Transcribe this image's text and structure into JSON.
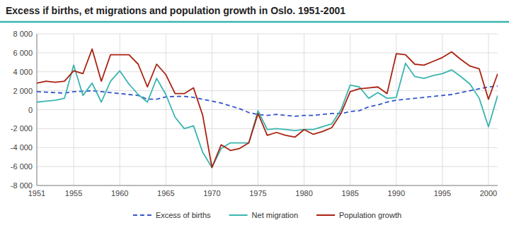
{
  "chart_data": {
    "type": "line",
    "title": "Excess if births, et migrations and population growth in Oslo. 1951-2001",
    "x": [
      1951,
      1952,
      1953,
      1954,
      1955,
      1956,
      1957,
      1958,
      1959,
      1960,
      1961,
      1962,
      1963,
      1964,
      1965,
      1966,
      1967,
      1968,
      1969,
      1970,
      1971,
      1972,
      1973,
      1974,
      1975,
      1976,
      1977,
      1978,
      1979,
      1980,
      1981,
      1982,
      1983,
      1984,
      1985,
      1986,
      1987,
      1988,
      1989,
      1990,
      1991,
      1992,
      1993,
      1994,
      1995,
      1996,
      1997,
      1998,
      1999,
      2000,
      2001
    ],
    "series": [
      {
        "name": "Excess of births",
        "color": "#3355cc",
        "line_style": "dashed",
        "values": [
          1900,
          1850,
          1800,
          1750,
          1900,
          1950,
          2000,
          1900,
          1800,
          1700,
          1600,
          1500,
          1100,
          1100,
          1350,
          1400,
          1400,
          1300,
          1100,
          900,
          700,
          400,
          100,
          -300,
          -500,
          -600,
          -500,
          -600,
          -700,
          -600,
          -600,
          -500,
          -400,
          -400,
          -200,
          -100,
          300,
          500,
          800,
          1000,
          1100,
          1200,
          1300,
          1400,
          1500,
          1600,
          1800,
          2000,
          2200,
          2400,
          2500
        ]
      },
      {
        "name": "Net migration",
        "color": "#3ab5b0",
        "line_style": "solid",
        "values": [
          800,
          900,
          1000,
          1200,
          4700,
          1500,
          2800,
          800,
          3000,
          4100,
          2700,
          1600,
          800,
          3300,
          1600,
          -800,
          -2000,
          -1700,
          -4500,
          -6100,
          -4100,
          -3500,
          -3500,
          -3500,
          -100,
          -2100,
          -2000,
          -2100,
          -2200,
          -2100,
          -2100,
          -1800,
          -1500,
          0,
          2600,
          2400,
          1200,
          1800,
          1200,
          1300,
          4900,
          3500,
          3300,
          3600,
          3800,
          4200,
          3500,
          2700,
          1200,
          -1800,
          1500
        ]
      },
      {
        "name": "Population growth",
        "color": "#aa2211",
        "line_style": "solid",
        "values": [
          2800,
          3000,
          2900,
          3000,
          4100,
          3800,
          6400,
          3000,
          5800,
          5800,
          5800,
          4800,
          2400,
          4800,
          3700,
          1700,
          1700,
          2300,
          -600,
          -6100,
          -3700,
          -4300,
          -4100,
          -3500,
          -400,
          -2700,
          -2400,
          -2700,
          -2900,
          -2100,
          -2600,
          -2300,
          -1900,
          -400,
          1900,
          2200,
          2300,
          2400,
          1700,
          5900,
          5800,
          4800,
          4700,
          5100,
          5500,
          6100,
          5300,
          4600,
          4300,
          1100,
          3800
        ]
      }
    ],
    "xlim": [
      1951,
      2001
    ],
    "xticks": [
      1951,
      1955,
      1960,
      1965,
      1970,
      1975,
      1980,
      1985,
      1990,
      1995,
      2000
    ],
    "ylim": [
      -8000,
      8000
    ],
    "yticks": [
      {
        "value": -8000,
        "label": "-8 000"
      },
      {
        "value": -6000,
        "label": "-6 000"
      },
      {
        "value": -4000,
        "label": "-4 000"
      },
      {
        "value": -2000,
        "label": "-2 000"
      },
      0,
      {
        "value": 2000,
        "label": "2 000"
      },
      {
        "value": 4000,
        "label": "4 000"
      },
      {
        "value": 6000,
        "label": "6 000"
      },
      {
        "value": 8000,
        "label": "8 000"
      }
    ],
    "grid": true,
    "legend": "bottom"
  }
}
